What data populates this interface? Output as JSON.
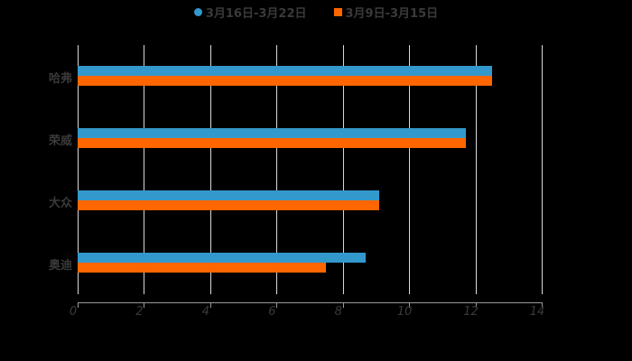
{
  "legend": [
    {
      "label": "3月16日-3月22日",
      "color": "#3399cc",
      "shape": "circle"
    },
    {
      "label": "3月9日-3月15日",
      "color": "#ff6600",
      "shape": "square"
    }
  ],
  "chart_data": {
    "type": "bar",
    "orientation": "horizontal",
    "title": "",
    "xlabel": "",
    "ylabel": "",
    "categories": [
      "哈弗",
      "荣威",
      "大众",
      "奥迪"
    ],
    "series": [
      {
        "name": "3月16日-3月22日",
        "color": "#3399cc",
        "values": [
          12.5,
          11.7,
          9.1,
          8.7
        ]
      },
      {
        "name": "3月9日-3月15日",
        "color": "#ff6600",
        "values": [
          12.5,
          11.7,
          9.1,
          7.5
        ]
      }
    ],
    "xlim": [
      0,
      14
    ],
    "xticks": [
      "0",
      "2",
      "4",
      "6",
      "8",
      "10",
      "12",
      "14"
    ],
    "grid": true,
    "legend_position": "top"
  }
}
